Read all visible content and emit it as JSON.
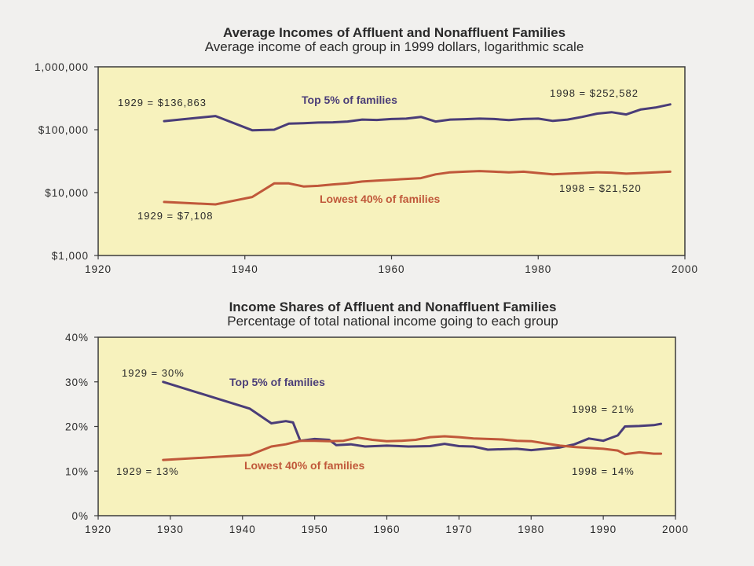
{
  "chart_data": [
    {
      "type": "line",
      "title": "Average Incomes of Affluent and Nonaffluent Families",
      "subtitle": "Average income of each group in 1999 dollars, logarithmic scale",
      "xlabel": "",
      "ylabel": "",
      "yscale": "log",
      "xlim": [
        1920,
        2000
      ],
      "ylim": [
        1000,
        1000000
      ],
      "x_ticks": [
        1920,
        1940,
        1960,
        1980,
        2000
      ],
      "x_tick_labels": [
        "1920",
        "1940",
        "1960",
        "1980",
        "2000"
      ],
      "y_ticks": [
        1000,
        10000,
        100000,
        1000000
      ],
      "y_tick_labels": [
        "$1,000",
        "$10,000",
        "$100,000",
        "1,000,000"
      ],
      "grid": false,
      "background": "#f7f2bd",
      "series": [
        {
          "name": "Top 5% of families",
          "color": "#4a3d78",
          "points": [
            [
              1929,
              136863
            ],
            [
              1936,
              165000
            ],
            [
              1941,
              98000
            ],
            [
              1944,
              100000
            ],
            [
              1946,
              125000
            ],
            [
              1948,
              127000
            ],
            [
              1950,
              130000
            ],
            [
              1952,
              131000
            ],
            [
              1954,
              135000
            ],
            [
              1956,
              145000
            ],
            [
              1958,
              143000
            ],
            [
              1960,
              148000
            ],
            [
              1962,
              150000
            ],
            [
              1964,
              160000
            ],
            [
              1966,
              135000
            ],
            [
              1968,
              145000
            ],
            [
              1970,
              147000
            ],
            [
              1972,
              150000
            ],
            [
              1974,
              148000
            ],
            [
              1976,
              142000
            ],
            [
              1978,
              148000
            ],
            [
              1980,
              150000
            ],
            [
              1982,
              138000
            ],
            [
              1984,
              145000
            ],
            [
              1986,
              160000
            ],
            [
              1988,
              180000
            ],
            [
              1990,
              190000
            ],
            [
              1992,
              175000
            ],
            [
              1994,
              210000
            ],
            [
              1996,
              225000
            ],
            [
              1998,
              252582
            ]
          ]
        },
        {
          "name": "Lowest 40% of families",
          "color": "#c0583a",
          "points": [
            [
              1929,
              7108
            ],
            [
              1936,
              6500
            ],
            [
              1941,
              8500
            ],
            [
              1944,
              14000
            ],
            [
              1946,
              14000
            ],
            [
              1948,
              12500
            ],
            [
              1950,
              12800
            ],
            [
              1952,
              13500
            ],
            [
              1954,
              14000
            ],
            [
              1956,
              15000
            ],
            [
              1958,
              15500
            ],
            [
              1960,
              16000
            ],
            [
              1962,
              16500
            ],
            [
              1964,
              17000
            ],
            [
              1966,
              19500
            ],
            [
              1968,
              21000
            ],
            [
              1970,
              21500
            ],
            [
              1972,
              22000
            ],
            [
              1974,
              21500
            ],
            [
              1976,
              21000
            ],
            [
              1978,
              21500
            ],
            [
              1980,
              20500
            ],
            [
              1982,
              19500
            ],
            [
              1984,
              20000
            ],
            [
              1986,
              20500
            ],
            [
              1988,
              21000
            ],
            [
              1990,
              20800
            ],
            [
              1992,
              20000
            ],
            [
              1994,
              20500
            ],
            [
              1996,
              21000
            ],
            [
              1998,
              21520
            ]
          ]
        }
      ],
      "annotations": [
        {
          "text": "1929  =  $136,863",
          "x": 1929,
          "y": 136863
        },
        {
          "text": "1998  =  $252,582",
          "x": 1998,
          "y": 252582
        },
        {
          "text": "1929  =  $7,108",
          "x": 1929,
          "y": 7108
        },
        {
          "text": "1998  =  $21,520",
          "x": 1998,
          "y": 21520
        }
      ]
    },
    {
      "type": "line",
      "title": "Income Shares of Affluent and Nonaffluent Families",
      "subtitle": "Percentage of total national income going to each group",
      "xlabel": "",
      "ylabel": "",
      "yscale": "linear",
      "xlim": [
        1920,
        2000
      ],
      "ylim": [
        0,
        40
      ],
      "x_ticks": [
        1920,
        1930,
        1940,
        1950,
        1960,
        1970,
        1980,
        1990,
        2000
      ],
      "x_tick_labels": [
        "1920",
        "1930",
        "1940",
        "1950",
        "1960",
        "1970",
        "1980",
        "1990",
        "2000"
      ],
      "y_ticks": [
        0,
        10,
        20,
        30,
        40
      ],
      "y_tick_labels": [
        "0%",
        "10%",
        "20%",
        "30%",
        "40%"
      ],
      "grid": false,
      "background": "#f7f2bd",
      "series": [
        {
          "name": "Top 5% of families",
          "color": "#4a3d78",
          "points": [
            [
              1929,
              30
            ],
            [
              1941,
              24
            ],
            [
              1944,
              20.7
            ],
            [
              1946,
              21.2
            ],
            [
              1947,
              20.9
            ],
            [
              1948,
              16.8
            ],
            [
              1950,
              17.2
            ],
            [
              1952,
              17.0
            ],
            [
              1953,
              15.8
            ],
            [
              1955,
              16.0
            ],
            [
              1957,
              15.5
            ],
            [
              1960,
              15.7
            ],
            [
              1963,
              15.5
            ],
            [
              1966,
              15.6
            ],
            [
              1968,
              16.1
            ],
            [
              1970,
              15.6
            ],
            [
              1972,
              15.5
            ],
            [
              1974,
              14.8
            ],
            [
              1978,
              15.0
            ],
            [
              1980,
              14.7
            ],
            [
              1982,
              15.0
            ],
            [
              1984,
              15.3
            ],
            [
              1986,
              16.0
            ],
            [
              1988,
              17.3
            ],
            [
              1990,
              16.8
            ],
            [
              1992,
              18.0
            ],
            [
              1993,
              20.0
            ],
            [
              1995,
              20.1
            ],
            [
              1997,
              20.3
            ],
            [
              1998,
              20.6
            ]
          ]
        },
        {
          "name": "Lowest 40% of families",
          "color": "#c0583a",
          "points": [
            [
              1929,
              12.5
            ],
            [
              1941,
              13.6
            ],
            [
              1944,
              15.5
            ],
            [
              1946,
              16.0
            ],
            [
              1948,
              16.8
            ],
            [
              1950,
              16.8
            ],
            [
              1952,
              16.7
            ],
            [
              1954,
              16.8
            ],
            [
              1956,
              17.5
            ],
            [
              1958,
              17.0
            ],
            [
              1960,
              16.7
            ],
            [
              1962,
              16.8
            ],
            [
              1964,
              17.0
            ],
            [
              1966,
              17.6
            ],
            [
              1968,
              17.8
            ],
            [
              1970,
              17.6
            ],
            [
              1972,
              17.3
            ],
            [
              1974,
              17.2
            ],
            [
              1976,
              17.1
            ],
            [
              1978,
              16.8
            ],
            [
              1980,
              16.7
            ],
            [
              1982,
              16.2
            ],
            [
              1984,
              15.7
            ],
            [
              1986,
              15.4
            ],
            [
              1988,
              15.2
            ],
            [
              1990,
              15.0
            ],
            [
              1992,
              14.6
            ],
            [
              1993,
              13.8
            ],
            [
              1995,
              14.2
            ],
            [
              1997,
              13.9
            ],
            [
              1998,
              13.9
            ]
          ]
        }
      ],
      "annotations": [
        {
          "text": "1929  =  30%",
          "x": 1929,
          "y": 30
        },
        {
          "text": "1998  =  21%",
          "x": 1998,
          "y": 21
        },
        {
          "text": "1929  =  13%",
          "x": 1929,
          "y": 13
        },
        {
          "text": "1998  =  14%",
          "x": 1998,
          "y": 14
        }
      ]
    }
  ]
}
